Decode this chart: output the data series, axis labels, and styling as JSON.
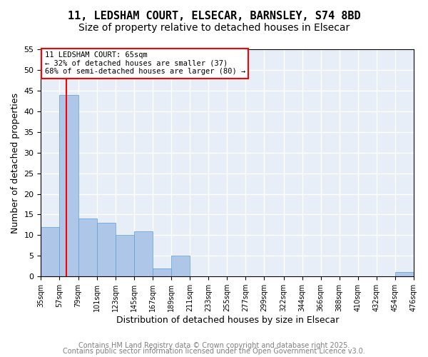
{
  "title_line1": "11, LEDSHAM COURT, ELSECAR, BARNSLEY, S74 8BD",
  "title_line2": "Size of property relative to detached houses in Elsecar",
  "bin_labels": [
    "35sqm",
    "57sqm",
    "79sqm",
    "101sqm",
    "123sqm",
    "145sqm",
    "167sqm",
    "189sqm",
    "211sqm",
    "233sqm",
    "255sqm",
    "277sqm",
    "299sqm",
    "322sqm",
    "344sqm",
    "366sqm",
    "388sqm",
    "410sqm",
    "432sqm",
    "454sqm",
    "476sqm"
  ],
  "bin_edges": [
    35,
    57,
    79,
    101,
    123,
    145,
    167,
    189,
    211,
    233,
    255,
    277,
    299,
    322,
    344,
    366,
    388,
    410,
    432,
    454,
    476
  ],
  "counts": [
    12,
    44,
    14,
    13,
    10,
    11,
    2,
    5,
    0,
    0,
    0,
    0,
    0,
    0,
    0,
    0,
    0,
    0,
    0,
    1
  ],
  "bar_color": "#aec6e8",
  "bar_edge_color": "#5a9fd4",
  "vline_x": 65,
  "vline_color": "red",
  "annotation_text": "11 LEDSHAM COURT: 65sqm\n← 32% of detached houses are smaller (37)\n68% of semi-detached houses are larger (80) →",
  "annotation_box_color": "white",
  "annotation_box_edge": "red",
  "xlabel": "Distribution of detached houses by size in Elsecar",
  "ylabel": "Number of detached properties",
  "ylim": [
    0,
    55
  ],
  "yticks": [
    0,
    5,
    10,
    15,
    20,
    25,
    30,
    35,
    40,
    45,
    50,
    55
  ],
  "footer_line1": "Contains HM Land Registry data © Crown copyright and database right 2025.",
  "footer_line2": "Contains public sector information licensed under the Open Government Licence v3.0.",
  "bg_color": "#e8eef8",
  "grid_color": "white",
  "title_fontsize": 11,
  "subtitle_fontsize": 10,
  "axis_fontsize": 9,
  "tick_fontsize": 7,
  "footer_fontsize": 7
}
